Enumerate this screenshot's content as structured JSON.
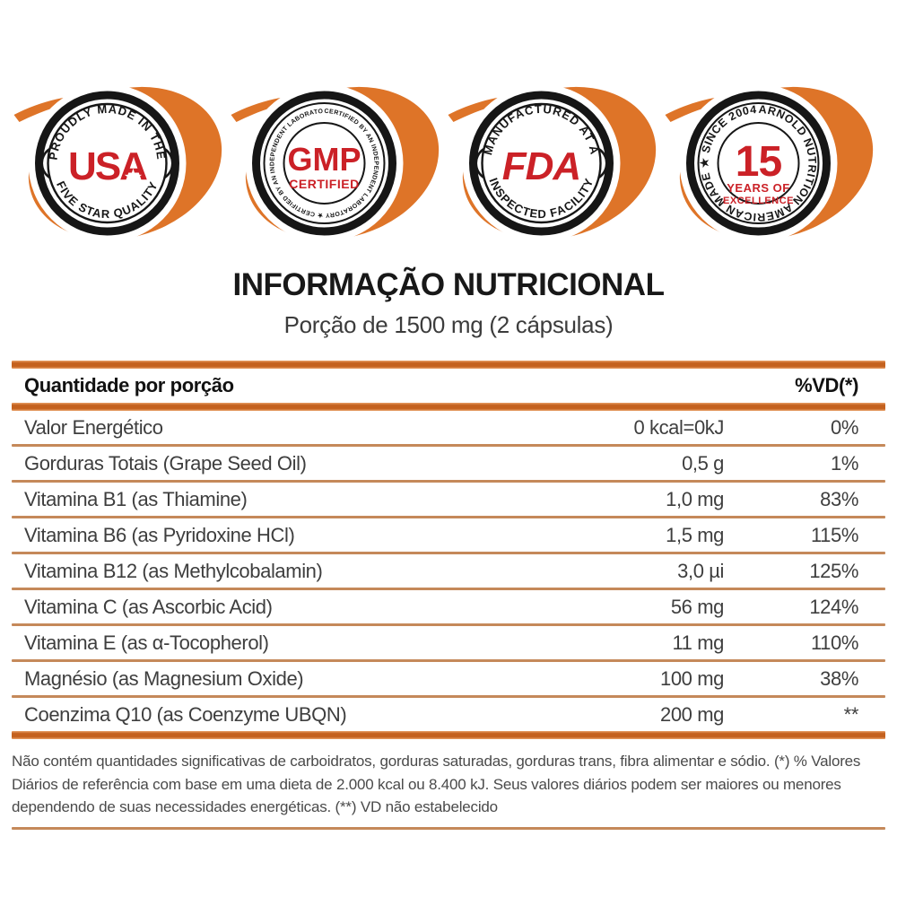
{
  "badges": [
    {
      "id": "usa",
      "style": "arc",
      "top_text": "PROUDLY MADE IN THE",
      "bottom_text": "FIVE STAR QUALITY",
      "center": [
        "USA"
      ],
      "star": "★"
    },
    {
      "id": "gmp",
      "style": "circle",
      "ring_text": "CERTIFIED BY AN INDEPENDENT LABORATORY ★ CERTIFIED BY AN INDEPENDENT LABORATORY ★",
      "center": [
        "GMP",
        "CERTIFIED"
      ]
    },
    {
      "id": "fda",
      "style": "arc",
      "top_text": "MANUFACTURED AT A",
      "bottom_text": "INSPECTED FACILITY",
      "center": [
        "FDA"
      ]
    },
    {
      "id": "y15",
      "style": "circle",
      "ring_text": "ARNOLD NUTRITION AMERICAN MADE ★ SINCE 2004 ★",
      "center": [
        "15",
        "YEARS OF",
        "EXCELLENCE"
      ]
    }
  ],
  "title": "INFORMAÇÃO NUTRICIONAL",
  "subtitle": "Porção de 1500 mg (2 cápsulas)",
  "table": {
    "header": {
      "left": "Quantidade por porção",
      "right": "%VD(*)"
    },
    "rows": [
      {
        "name": "Valor Energético",
        "amount": "0 kcal=0kJ",
        "dv": "0%"
      },
      {
        "name": "Gorduras Totais (Grape Seed Oil)",
        "amount": "0,5 g",
        "dv": "1%"
      },
      {
        "name": "Vitamina B1 (as Thiamine)",
        "amount": "1,0 mg",
        "dv": "83%"
      },
      {
        "name": "Vitamina B6 (as Pyridoxine HCl)",
        "amount": "1,5 mg",
        "dv": "115%"
      },
      {
        "name": "Vitamina B12 (as Methylcobalamin)",
        "amount": "3,0 µi",
        "dv": "125%"
      },
      {
        "name": "Vitamina C (as Ascorbic Acid)",
        "amount": "56 mg",
        "dv": "124%"
      },
      {
        "name": "Vitamina E (as α-Tocopherol)",
        "amount": "11 mg",
        "dv": "110%"
      },
      {
        "name": "Magnésio (as Magnesium Oxide)",
        "amount": "100 mg",
        "dv": "38%"
      },
      {
        "name": "Coenzima Q10 (as Coenzyme UBQN)",
        "amount": "200 mg",
        "dv": "**"
      }
    ]
  },
  "footnote": "Não contém quantidades significativas de carboidratos, gorduras saturadas, gorduras trans, fibra alimentar e sódio. (*) % Valores Diários de referência com base em uma dieta de 2.000 kcal ou 8.400 kJ. Seus valores diários podem ser maiores ou menores dependendo de suas necessidades energéticas. (**) VD não estabelecido",
  "colors": {
    "accent_orange": "#DE7428",
    "bar_orange": "#C4611E",
    "divider_tan": "#C5895A",
    "badge_red": "#CB2127",
    "ink": "#161616"
  }
}
